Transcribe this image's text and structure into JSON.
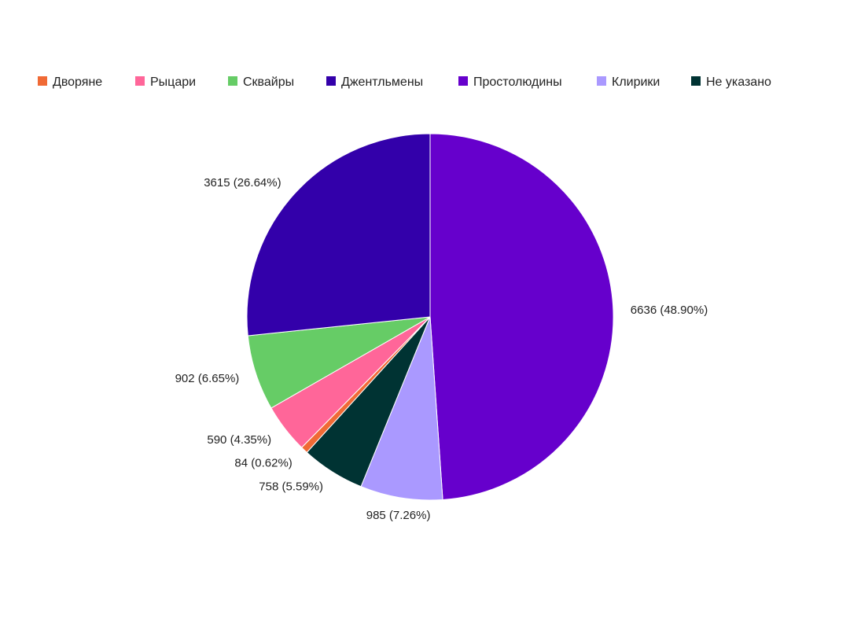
{
  "chart_data": {
    "type": "pie",
    "title": "",
    "legend_position": "top-left",
    "start_category": "Простолюдины",
    "direction": "clockwise",
    "categories": [
      "Дворяне",
      "Рыцари",
      "Сквайры",
      "Джентльмены",
      "Простолюдины",
      "Клирики",
      "Не указано"
    ],
    "values": [
      84,
      590,
      902,
      3615,
      6636,
      985,
      758
    ],
    "labels": [
      "84 (0.62%)",
      "590 (4.35%)",
      "902 (6.65%)",
      "3615 (26.64%)",
      "6636 (48.90%)",
      "985 (7.26%)",
      "758 (5.59%)"
    ],
    "colors": [
      "#f06a35",
      "#ff6699",
      "#66cc66",
      "#3300aa",
      "#6600cc",
      "#aa99ff",
      "#003333"
    ]
  }
}
